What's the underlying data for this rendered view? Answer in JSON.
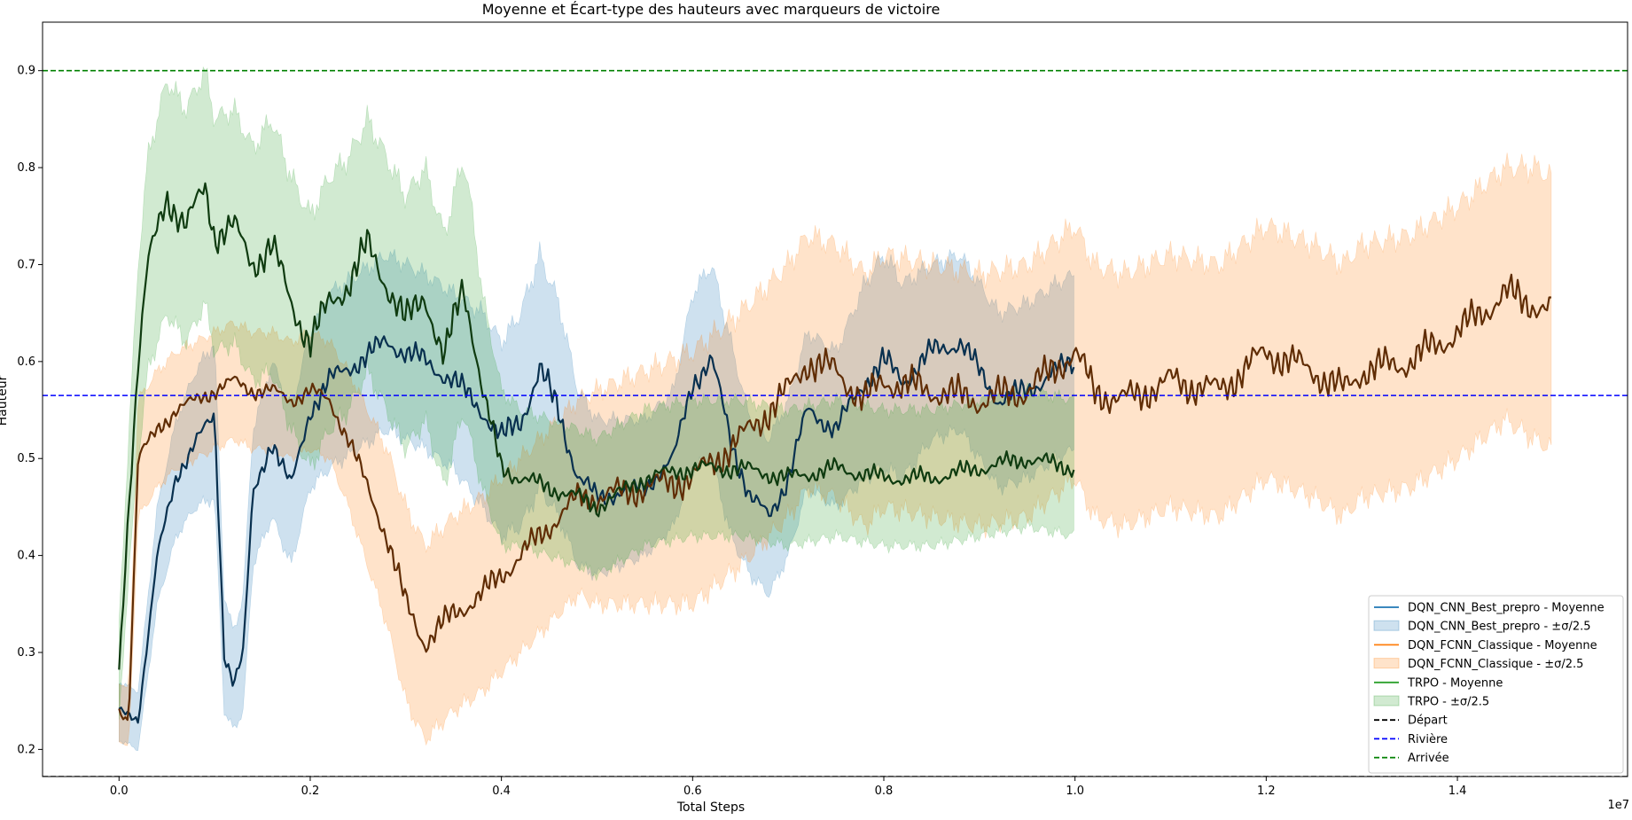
{
  "chart_data": {
    "type": "line",
    "title": "Moyenne et Écart-type des hauteurs avec marqueurs de victoire",
    "xlabel": "Total Steps",
    "ylabel": "Hauteur",
    "x_offset_label": "1e7",
    "xlim": [
      -0.08,
      1.578
    ],
    "ylim": [
      0.172,
      0.95
    ],
    "xticks": [
      "0.0",
      "0.2",
      "0.4",
      "0.6",
      "0.8",
      "1.0",
      "1.2",
      "1.4"
    ],
    "yticks": [
      "0.2",
      "0.3",
      "0.4",
      "0.5",
      "0.6",
      "0.7",
      "0.8",
      "0.9"
    ],
    "grid": false,
    "legend_position": "lower right",
    "series": [
      {
        "name": "DQN_CNN_Best_prepro - Moyenne",
        "band_name": "DQN_CNN_Best_prepro - ±σ/2.5",
        "color": "#1f77b4",
        "mean_color": "#08304f",
        "band_color": "#1f77b4",
        "x": [
          0.0,
          0.02,
          0.04,
          0.06,
          0.08,
          0.1,
          0.11,
          0.12,
          0.13,
          0.14,
          0.16,
          0.18,
          0.2,
          0.22,
          0.25,
          0.28,
          0.3,
          0.32,
          0.35,
          0.38,
          0.4,
          0.42,
          0.44,
          0.46,
          0.48,
          0.5,
          0.55,
          0.58,
          0.6,
          0.62,
          0.64,
          0.66,
          0.68,
          0.7,
          0.72,
          0.75,
          0.78,
          0.8,
          0.82,
          0.85,
          0.88,
          0.9,
          0.92,
          0.95,
          0.98,
          1.0
        ],
        "mean": [
          0.24,
          0.23,
          0.4,
          0.48,
          0.52,
          0.54,
          0.3,
          0.27,
          0.3,
          0.46,
          0.52,
          0.47,
          0.55,
          0.58,
          0.6,
          0.62,
          0.61,
          0.6,
          0.58,
          0.55,
          0.52,
          0.54,
          0.59,
          0.55,
          0.48,
          0.46,
          0.47,
          0.5,
          0.58,
          0.6,
          0.52,
          0.46,
          0.44,
          0.48,
          0.55,
          0.53,
          0.58,
          0.6,
          0.58,
          0.61,
          0.62,
          0.59,
          0.56,
          0.57,
          0.59,
          0.6
        ],
        "std_band": [
          0.03,
          0.03,
          0.05,
          0.06,
          0.07,
          0.08,
          0.06,
          0.05,
          0.06,
          0.07,
          0.08,
          0.08,
          0.08,
          0.09,
          0.09,
          0.09,
          0.09,
          0.09,
          0.09,
          0.1,
          0.1,
          0.11,
          0.12,
          0.11,
          0.09,
          0.08,
          0.07,
          0.07,
          0.09,
          0.1,
          0.1,
          0.08,
          0.08,
          0.08,
          0.08,
          0.08,
          0.1,
          0.11,
          0.1,
          0.09,
          0.09,
          0.09,
          0.09,
          0.09,
          0.09,
          0.09
        ]
      },
      {
        "name": "DQN_FCNN_Classique - Moyenne",
        "band_name": "DQN_FCNN_Classique - ±σ/2.5",
        "color": "#ff7f0e",
        "mean_color": "#602d05",
        "band_color": "#ff7f0e",
        "x": [
          0.0,
          0.01,
          0.02,
          0.04,
          0.06,
          0.08,
          0.1,
          0.12,
          0.14,
          0.16,
          0.18,
          0.2,
          0.22,
          0.24,
          0.26,
          0.28,
          0.3,
          0.32,
          0.35,
          0.38,
          0.4,
          0.42,
          0.45,
          0.48,
          0.5,
          0.55,
          0.6,
          0.65,
          0.7,
          0.72,
          0.75,
          0.78,
          0.8,
          0.85,
          0.9,
          0.95,
          1.0,
          1.02,
          1.05,
          1.1,
          1.15,
          1.2,
          1.25,
          1.28,
          1.3,
          1.35,
          1.4,
          1.45,
          1.48,
          1.5
        ],
        "mean": [
          0.24,
          0.23,
          0.5,
          0.53,
          0.55,
          0.56,
          0.57,
          0.58,
          0.57,
          0.57,
          0.56,
          0.57,
          0.56,
          0.52,
          0.47,
          0.42,
          0.35,
          0.31,
          0.34,
          0.36,
          0.38,
          0.4,
          0.43,
          0.46,
          0.46,
          0.47,
          0.48,
          0.52,
          0.57,
          0.6,
          0.59,
          0.56,
          0.58,
          0.57,
          0.56,
          0.57,
          0.61,
          0.57,
          0.56,
          0.58,
          0.57,
          0.61,
          0.59,
          0.57,
          0.59,
          0.6,
          0.63,
          0.67,
          0.66,
          0.65
        ],
        "std_band": [
          0.03,
          0.03,
          0.06,
          0.06,
          0.06,
          0.06,
          0.06,
          0.06,
          0.06,
          0.06,
          0.06,
          0.06,
          0.06,
          0.07,
          0.08,
          0.09,
          0.1,
          0.1,
          0.1,
          0.1,
          0.1,
          0.1,
          0.1,
          0.1,
          0.11,
          0.12,
          0.13,
          0.13,
          0.13,
          0.13,
          0.13,
          0.13,
          0.13,
          0.13,
          0.13,
          0.13,
          0.13,
          0.13,
          0.13,
          0.13,
          0.13,
          0.13,
          0.13,
          0.13,
          0.13,
          0.13,
          0.13,
          0.13,
          0.14,
          0.14
        ]
      },
      {
        "name": "TRPO - Moyenne",
        "band_name": "TRPO - ±σ/2.5",
        "color": "#2ca02c",
        "mean_color": "#0f3b10",
        "band_color": "#2ca02c",
        "x": [
          0.0,
          0.01,
          0.02,
          0.03,
          0.05,
          0.07,
          0.09,
          0.1,
          0.12,
          0.14,
          0.16,
          0.18,
          0.2,
          0.22,
          0.24,
          0.26,
          0.28,
          0.3,
          0.32,
          0.34,
          0.36,
          0.37,
          0.38,
          0.4,
          0.42,
          0.45,
          0.48,
          0.5,
          0.55,
          0.6,
          0.65,
          0.7,
          0.75,
          0.8,
          0.85,
          0.9,
          0.95,
          1.0
        ],
        "mean": [
          0.28,
          0.45,
          0.6,
          0.7,
          0.77,
          0.74,
          0.78,
          0.73,
          0.74,
          0.7,
          0.72,
          0.66,
          0.62,
          0.66,
          0.68,
          0.72,
          0.68,
          0.64,
          0.67,
          0.6,
          0.68,
          0.63,
          0.57,
          0.49,
          0.48,
          0.47,
          0.46,
          0.45,
          0.48,
          0.49,
          0.49,
          0.48,
          0.49,
          0.48,
          0.48,
          0.49,
          0.5,
          0.49
        ],
        "std_band": [
          0.05,
          0.07,
          0.1,
          0.11,
          0.12,
          0.12,
          0.12,
          0.12,
          0.12,
          0.12,
          0.13,
          0.13,
          0.13,
          0.13,
          0.13,
          0.13,
          0.13,
          0.13,
          0.13,
          0.13,
          0.13,
          0.12,
          0.1,
          0.08,
          0.07,
          0.07,
          0.07,
          0.07,
          0.07,
          0.07,
          0.07,
          0.07,
          0.07,
          0.07,
          0.07,
          0.07,
          0.07,
          0.07
        ]
      }
    ],
    "reference_lines": [
      {
        "name": "Départ",
        "y": 0.172,
        "color": "#000000",
        "style": "dashed"
      },
      {
        "name": "Rivière",
        "y": 0.565,
        "color": "#0000ff",
        "style": "dashed"
      },
      {
        "name": "Arrivée",
        "y": 0.9,
        "color": "#008000",
        "style": "dashed"
      }
    ]
  }
}
